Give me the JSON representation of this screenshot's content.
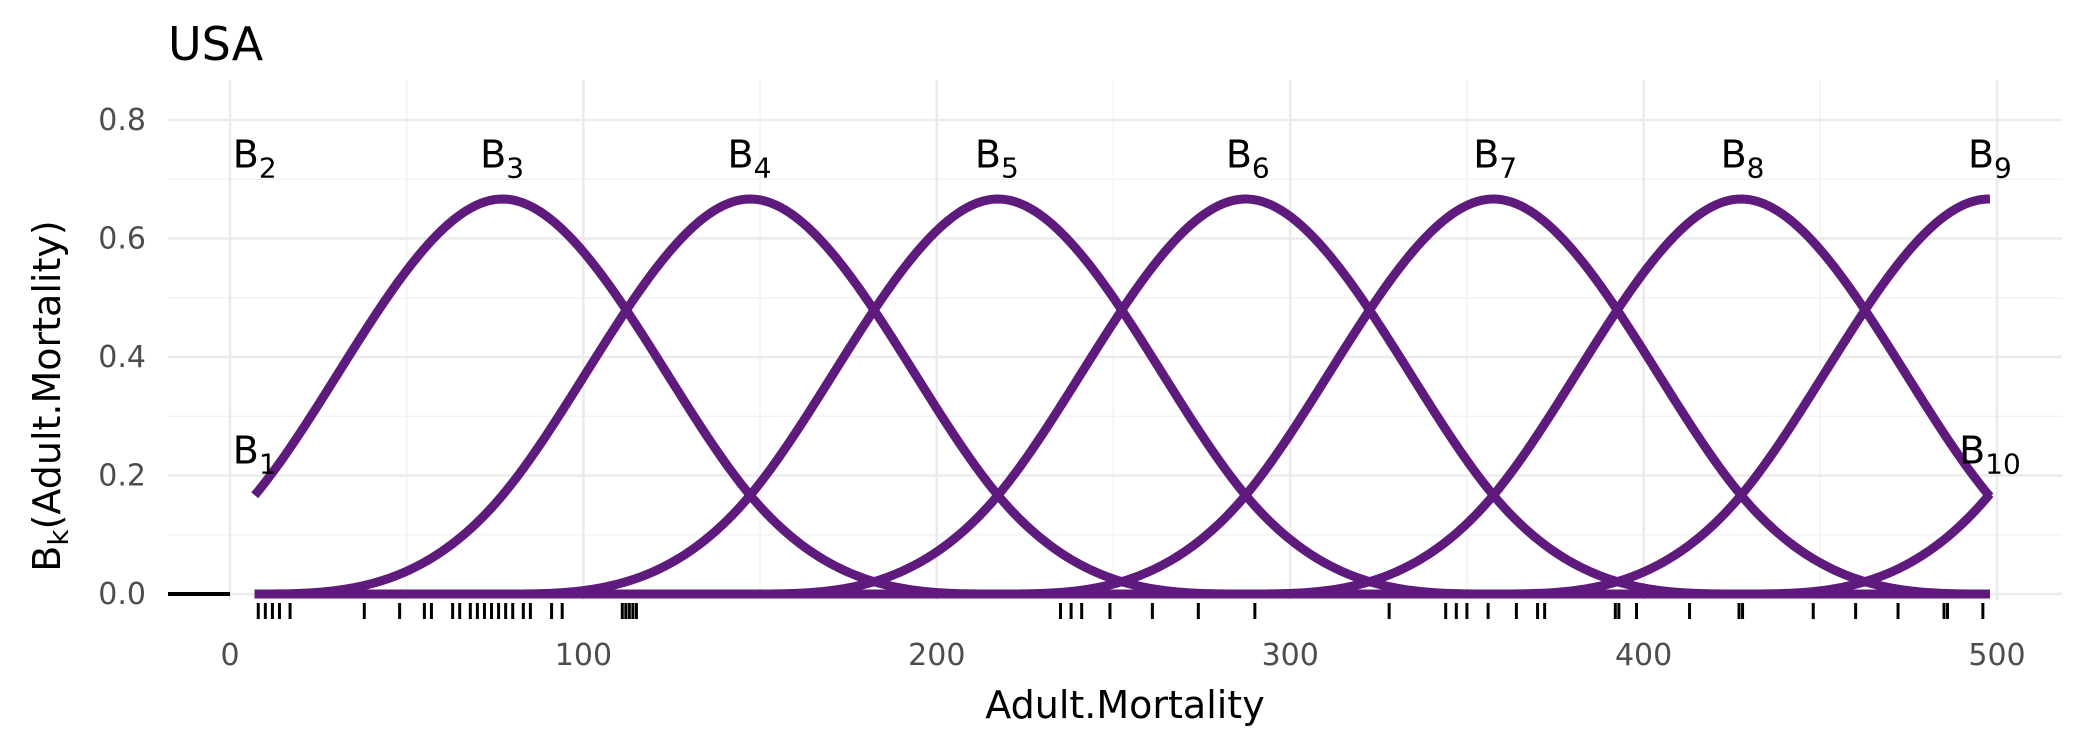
{
  "chart_data": {
    "type": "line",
    "title": "USA",
    "xlabel": "Adult.Mortality",
    "ylabel": "B",
    "ylabel_subscript": "k",
    "ylabel_suffix": "(Adult.Mortality)",
    "xlim": [
      0,
      500
    ],
    "ylim": [
      0,
      0.8
    ],
    "x_ticks": [
      0,
      100,
      200,
      300,
      400,
      500
    ],
    "x_tick_labels": [
      "0",
      "100",
      "200",
      "300",
      "400",
      "500"
    ],
    "y_ticks": [
      0,
      0.2,
      0.4,
      0.6,
      0.8
    ],
    "y_tick_labels": [
      "0.0",
      "0.2",
      "0.4",
      "0.6",
      "0.8"
    ],
    "grid": true,
    "legend": "none",
    "line_color": "#5e1a7c",
    "domain": [
      7,
      498
    ],
    "basis": {
      "degree": 3,
      "knot_spacing": 70.1,
      "first_knot": -63.1,
      "count": 10
    },
    "basis_labels": [
      {
        "base": "B",
        "sub": "1",
        "x": 7,
        "y": 0.22
      },
      {
        "base": "B",
        "sub": "2",
        "x": 7,
        "y": 0.72
      },
      {
        "base": "B",
        "sub": "3",
        "x": 77,
        "y": 0.72
      },
      {
        "base": "B",
        "sub": "4",
        "x": 147,
        "y": 0.72
      },
      {
        "base": "B",
        "sub": "5",
        "x": 217,
        "y": 0.72
      },
      {
        "base": "B",
        "sub": "6",
        "x": 288,
        "y": 0.72
      },
      {
        "base": "B",
        "sub": "7",
        "x": 358,
        "y": 0.72
      },
      {
        "base": "B",
        "sub": "8",
        "x": 428,
        "y": 0.72
      },
      {
        "base": "B",
        "sub": "9",
        "x": 498,
        "y": 0.72
      },
      {
        "base": "B",
        "sub": "10",
        "x": 498,
        "y": 0.22
      }
    ],
    "rug": [
      8,
      10,
      12,
      14,
      17,
      38,
      48,
      55,
      57,
      63,
      65,
      68,
      70,
      72,
      74,
      76,
      78,
      80,
      83,
      85,
      91,
      94,
      111,
      112,
      113,
      114,
      115,
      235,
      238,
      241,
      249,
      261,
      274,
      290,
      328,
      344,
      347,
      350,
      356,
      364,
      370,
      372,
      392,
      393,
      398,
      413,
      427,
      428,
      448,
      460,
      472,
      485,
      486,
      496
    ]
  }
}
